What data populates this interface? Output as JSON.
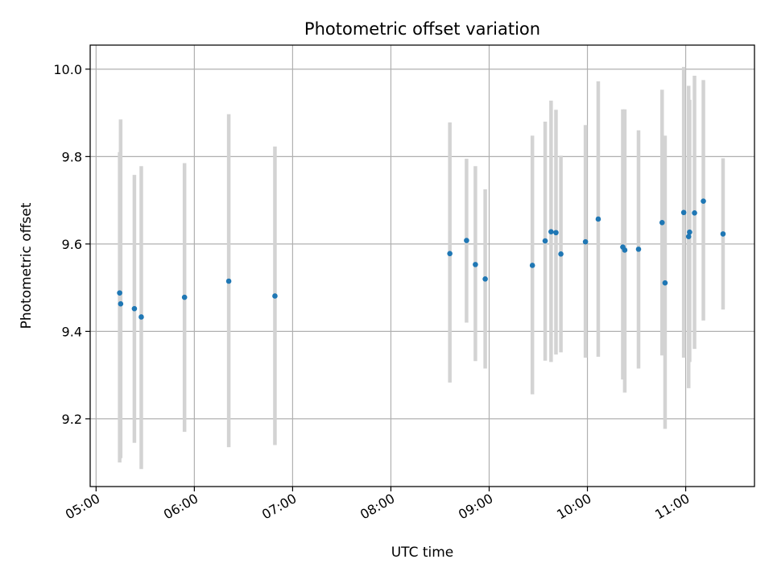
{
  "chart_data": {
    "type": "scatter",
    "title": "Photometric offset variation",
    "xlabel": "UTC time",
    "ylabel": "Photometric offset",
    "grid": true,
    "xlim": [
      4.94,
      11.7
    ],
    "ylim": [
      9.045,
      10.055
    ],
    "x_ticks": [
      {
        "value": 5,
        "label": "05:00"
      },
      {
        "value": 6,
        "label": "06:00"
      },
      {
        "value": 7,
        "label": "07:00"
      },
      {
        "value": 8,
        "label": "08:00"
      },
      {
        "value": 9,
        "label": "09:00"
      },
      {
        "value": 10,
        "label": "10:00"
      },
      {
        "value": 11,
        "label": "11:00"
      }
    ],
    "y_ticks": [
      {
        "value": 9.2,
        "label": "9.2"
      },
      {
        "value": 9.4,
        "label": "9.4"
      },
      {
        "value": 9.6,
        "label": "9.6"
      },
      {
        "value": 9.8,
        "label": "9.8"
      },
      {
        "value": 10.0,
        "label": "10.0"
      }
    ],
    "colors": {
      "marker": "#1f77b4",
      "errorbar": "#d3d3d3",
      "grid": "#b0b0b0",
      "axes": "#000000"
    },
    "points": [
      {
        "t": 5.24,
        "y": 9.488,
        "lo": 9.1,
        "hi": 9.81
      },
      {
        "t": 5.25,
        "y": 9.463,
        "lo": 9.11,
        "hi": 9.885
      },
      {
        "t": 5.39,
        "y": 9.452,
        "lo": 9.145,
        "hi": 9.758
      },
      {
        "t": 5.46,
        "y": 9.433,
        "lo": 9.085,
        "hi": 9.778
      },
      {
        "t": 5.9,
        "y": 9.478,
        "lo": 9.17,
        "hi": 9.785
      },
      {
        "t": 6.35,
        "y": 9.515,
        "lo": 9.135,
        "hi": 9.897
      },
      {
        "t": 6.82,
        "y": 9.481,
        "lo": 9.14,
        "hi": 9.823
      },
      {
        "t": 8.6,
        "y": 9.578,
        "lo": 9.283,
        "hi": 9.878
      },
      {
        "t": 8.77,
        "y": 9.608,
        "lo": 9.42,
        "hi": 9.795
      },
      {
        "t": 8.86,
        "y": 9.553,
        "lo": 9.332,
        "hi": 9.778
      },
      {
        "t": 8.96,
        "y": 9.52,
        "lo": 9.315,
        "hi": 9.725
      },
      {
        "t": 9.44,
        "y": 9.551,
        "lo": 9.256,
        "hi": 9.848
      },
      {
        "t": 9.57,
        "y": 9.607,
        "lo": 9.333,
        "hi": 9.88
      },
      {
        "t": 9.63,
        "y": 9.628,
        "lo": 9.33,
        "hi": 9.928
      },
      {
        "t": 9.68,
        "y": 9.626,
        "lo": 9.347,
        "hi": 9.907
      },
      {
        "t": 9.73,
        "y": 9.577,
        "lo": 9.352,
        "hi": 9.802
      },
      {
        "t": 9.98,
        "y": 9.605,
        "lo": 9.34,
        "hi": 9.872
      },
      {
        "t": 10.11,
        "y": 9.657,
        "lo": 9.342,
        "hi": 9.972
      },
      {
        "t": 10.36,
        "y": 9.593,
        "lo": 9.29,
        "hi": 9.908
      },
      {
        "t": 10.38,
        "y": 9.586,
        "lo": 9.26,
        "hi": 9.908
      },
      {
        "t": 10.52,
        "y": 9.588,
        "lo": 9.315,
        "hi": 9.86
      },
      {
        "t": 10.76,
        "y": 9.649,
        "lo": 9.345,
        "hi": 9.953
      },
      {
        "t": 10.79,
        "y": 9.511,
        "lo": 9.177,
        "hi": 9.848
      },
      {
        "t": 10.98,
        "y": 9.672,
        "lo": 9.34,
        "hi": 10.005
      },
      {
        "t": 11.03,
        "y": 9.617,
        "lo": 9.27,
        "hi": 9.962
      },
      {
        "t": 11.04,
        "y": 9.627,
        "lo": 9.33,
        "hi": 9.93
      },
      {
        "t": 11.09,
        "y": 9.671,
        "lo": 9.36,
        "hi": 9.985
      },
      {
        "t": 11.18,
        "y": 9.698,
        "lo": 9.425,
        "hi": 9.975
      },
      {
        "t": 11.38,
        "y": 9.623,
        "lo": 9.45,
        "hi": 9.796
      }
    ]
  }
}
